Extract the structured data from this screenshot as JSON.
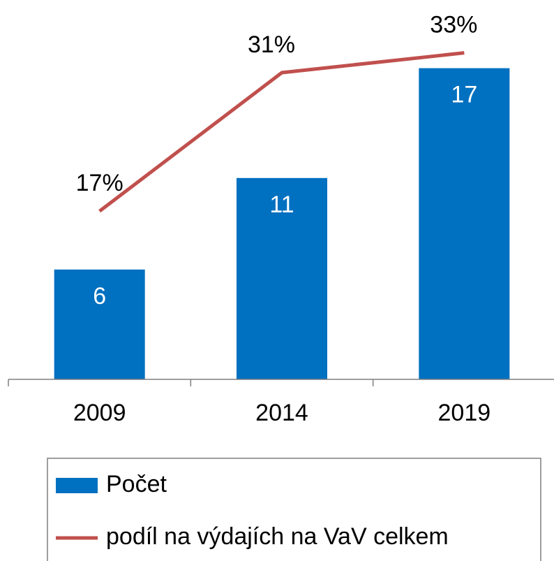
{
  "chart_data": {
    "type": "bar",
    "categories": [
      "2009",
      "2014",
      "2019"
    ],
    "series": [
      {
        "name": "Počet",
        "type": "bar",
        "color": "#0070c0",
        "values": [
          6,
          11,
          17
        ],
        "axis": "y"
      },
      {
        "name": "podíl na výdajích na VaV celkem",
        "type": "line",
        "color": "#c0504d",
        "values": [
          17,
          31,
          33
        ],
        "value_labels": [
          "17%",
          "31%",
          "33%"
        ],
        "axis": "y2"
      }
    ],
    "ylim": [
      0,
      20
    ],
    "y2lim": [
      0,
      37
    ],
    "legend": "bottom"
  }
}
